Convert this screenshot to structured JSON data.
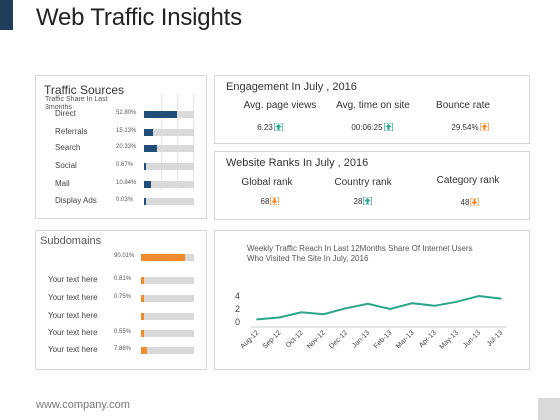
{
  "page": {
    "title": "Web Traffic Insights",
    "footer": "www.company.com"
  },
  "traffic_sources": {
    "title": "Traffic Sources",
    "subtitle": "Traffic Share In Last 3months",
    "rows": [
      {
        "label": "Direct",
        "pct": "52.80%",
        "value": 52.8
      },
      {
        "label": "Referrals",
        "pct": "15.13%",
        "value": 15.13
      },
      {
        "label": "Search",
        "pct": "20.33%",
        "value": 20.33
      },
      {
        "label": "Social",
        "pct": "0.67%",
        "value": 0.67
      },
      {
        "label": "Mail",
        "pct": "10.84%",
        "value": 10.84
      },
      {
        "label": "Display Ads",
        "pct": "0.03%",
        "value": 0.03
      }
    ]
  },
  "engagement": {
    "title": "Engagement In July , 2016",
    "metrics": [
      {
        "label": "Avg. page views",
        "value": "6.23",
        "trend": "up"
      },
      {
        "label": "Avg. time on site",
        "value": "00:06:25",
        "trend": "up"
      },
      {
        "label": "Bounce rate",
        "value": "29.54%",
        "trend": "up"
      }
    ]
  },
  "ranks": {
    "title": "Website Ranks In July , 2016",
    "metrics": [
      {
        "label": "Global rank",
        "value": "68",
        "trend": "down"
      },
      {
        "label": "Country rank",
        "value": "28",
        "trend": "up"
      },
      {
        "label": "Category rank",
        "value": "48",
        "trend": "down"
      }
    ]
  },
  "subdomains": {
    "title": "Subdomains",
    "rows": [
      {
        "label": "",
        "pct": "90.01%",
        "value": 90.01
      },
      {
        "label": "Your text here",
        "pct": "0.81%",
        "value": 0.81
      },
      {
        "label": "Your text here",
        "pct": "0.75%",
        "value": 0.75
      },
      {
        "label": "Your text here",
        "pct": "",
        "value": 0.6
      },
      {
        "label": "Your text here",
        "pct": "0.55%",
        "value": 0.55
      },
      {
        "label": "Your text here",
        "pct": "7.86%",
        "value": 7.86
      }
    ]
  },
  "colors": {
    "navy": "#1f4e79",
    "orange": "#f08a2c",
    "green": "#2aa58a"
  },
  "chart_data": {
    "type": "line",
    "title": "Weekly Traffic Reach In Last 12Months Share Of Internet Users Who Visited The Site In July, 2016",
    "categories": [
      "Aug-12",
      "Sep-12",
      "Oct-12",
      "Nov-12",
      "Dec-12",
      "Jan-13",
      "Feb-13",
      "Mar-13",
      "Apr-13",
      "May-13",
      "Jun-13",
      "Jul-13"
    ],
    "series": [
      {
        "values": [
          0.4,
          0.7,
          1.5,
          1.2,
          2.1,
          2.8,
          2.0,
          2.9,
          2.5,
          3.1,
          4.0,
          3.6
        ]
      }
    ],
    "yticks": [
      0,
      2,
      4
    ],
    "ylim": [
      0,
      5
    ],
    "grid": false
  }
}
